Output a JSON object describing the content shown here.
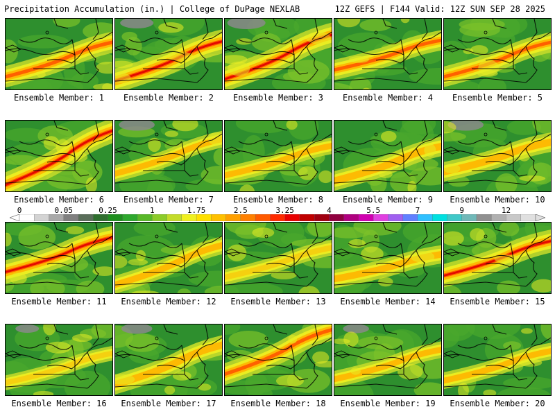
{
  "header": {
    "title": "Precipitation Accumulation (in.) | College of DuPage NEXLAB",
    "valid": "12Z GEFS | F144 Valid: 12Z SUN SEP 28 2025"
  },
  "members": [
    {
      "label": "Ensemble Member: 1",
      "intensity": 0.85,
      "band_center": 0.62,
      "band_tilt": 0.35,
      "gray_nw": 0.0
    },
    {
      "label": "Ensemble Member: 2",
      "intensity": 1.0,
      "band_center": 0.65,
      "band_tilt": 0.4,
      "gray_nw": 0.4
    },
    {
      "label": "Ensemble Member: 3",
      "intensity": 1.0,
      "band_center": 0.6,
      "band_tilt": 0.45,
      "gray_nw": 0.5
    },
    {
      "label": "Ensemble Member: 4",
      "intensity": 0.8,
      "band_center": 0.55,
      "band_tilt": 0.3,
      "gray_nw": 0.0
    },
    {
      "label": "Ensemble Member: 5",
      "intensity": 0.8,
      "band_center": 0.62,
      "band_tilt": 0.35,
      "gray_nw": 0.0
    },
    {
      "label": "Ensemble Member: 6",
      "intensity": 1.0,
      "band_center": 0.6,
      "band_tilt": 0.55,
      "gray_nw": 0.0
    },
    {
      "label": "Ensemble Member: 7",
      "intensity": 0.6,
      "band_center": 0.55,
      "band_tilt": 0.35,
      "gray_nw": 0.45
    },
    {
      "label": "Ensemble Member: 8",
      "intensity": 0.6,
      "band_center": 0.6,
      "band_tilt": 0.3,
      "gray_nw": 0.0
    },
    {
      "label": "Ensemble Member: 9",
      "intensity": 0.75,
      "band_center": 0.65,
      "band_tilt": 0.35,
      "gray_nw": 0.0
    },
    {
      "label": "Ensemble Member: 10",
      "intensity": 0.75,
      "band_center": 0.55,
      "band_tilt": 0.3,
      "gray_nw": 0.45
    },
    {
      "label": "Ensemble Member: 11",
      "intensity": 0.95,
      "band_center": 0.5,
      "band_tilt": 0.35,
      "gray_nw": 0.0
    },
    {
      "label": "Ensemble Member: 12",
      "intensity": 0.65,
      "band_center": 0.65,
      "band_tilt": 0.4,
      "gray_nw": 0.0
    },
    {
      "label": "Ensemble Member: 13",
      "intensity": 0.55,
      "band_center": 0.6,
      "band_tilt": 0.3,
      "gray_nw": 0.0
    },
    {
      "label": "Ensemble Member: 14",
      "intensity": 0.7,
      "band_center": 0.65,
      "band_tilt": 0.25,
      "gray_nw": 0.0
    },
    {
      "label": "Ensemble Member: 15",
      "intensity": 0.95,
      "band_center": 0.55,
      "band_tilt": 0.35,
      "gray_nw": 0.0
    },
    {
      "label": "Ensemble Member: 16",
      "intensity": 0.5,
      "band_center": 0.65,
      "band_tilt": 0.3,
      "gray_nw": 0.2
    },
    {
      "label": "Ensemble Member: 17",
      "intensity": 0.75,
      "band_center": 0.62,
      "band_tilt": 0.4,
      "gray_nw": 0.35
    },
    {
      "label": "Ensemble Member: 18",
      "intensity": 0.85,
      "band_center": 0.45,
      "band_tilt": 0.45,
      "gray_nw": 0.0
    },
    {
      "label": "Ensemble Member: 19",
      "intensity": 0.6,
      "band_center": 0.6,
      "band_tilt": 0.3,
      "gray_nw": 0.25
    },
    {
      "label": "Ensemble Member: 20",
      "intensity": 0.6,
      "band_center": 0.62,
      "band_tilt": 0.3,
      "gray_nw": 0.0
    }
  ],
  "colorbar": {
    "labels": [
      "0",
      "0.05",
      "0.25",
      "1",
      "1.75",
      "2.5",
      "3.25",
      "4",
      "5.5",
      "7",
      "9",
      "12"
    ],
    "colors": [
      "#ffffff",
      "#d3d3d3",
      "#a9a9a9",
      "#808080",
      "#5a6e5a",
      "#2f6f2f",
      "#1f8f1f",
      "#2ea82e",
      "#58b828",
      "#8ccc2a",
      "#c4dc2a",
      "#f0f020",
      "#ffe000",
      "#ffc000",
      "#ffa000",
      "#ff8000",
      "#ff5a00",
      "#ff2a00",
      "#e80000",
      "#c00000",
      "#a00010",
      "#900040",
      "#b00080",
      "#d000b0",
      "#e040e0",
      "#a060f0",
      "#6080ff",
      "#30c0ff",
      "#00e0e0",
      "#40c8c8",
      "#70b8b8",
      "#909090",
      "#b0b0b0",
      "#c8c8c8",
      "#e0e0e0"
    ]
  }
}
